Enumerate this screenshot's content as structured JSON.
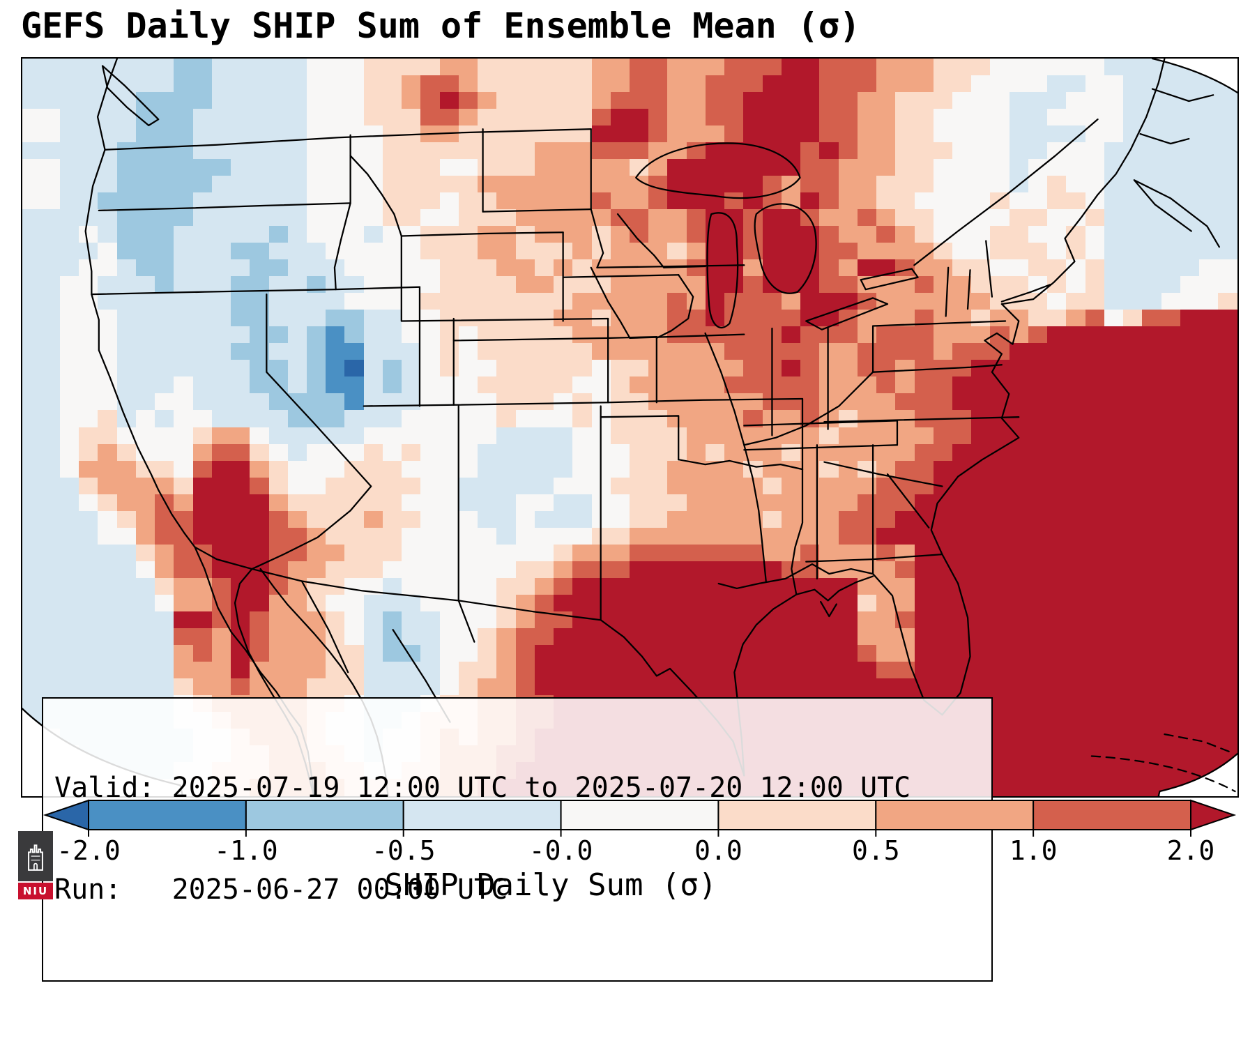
{
  "title": "GEFS Daily SHIP Sum of Ensemble Mean (σ)",
  "info_box": {
    "valid_line": "Valid: 2025-07-19 12:00 UTC to 2025-07-20 12:00 UTC",
    "run_line": "Run:   2025-06-27 00:00 UTC"
  },
  "colorbar": {
    "label": "SHIP Daily Sum (σ)",
    "ticks": [
      "-2.0",
      "-1.0",
      "-0.5",
      "-0.0",
      "0.0",
      "0.5",
      "1.0",
      "2.0"
    ],
    "under_color": "#2a66a8",
    "segment_colors": [
      "#4a90c4",
      "#9dc8e0",
      "#d5e6f1",
      "#f8f7f6",
      "#fbdcc9",
      "#f1a683",
      "#d4604d"
    ],
    "over_color": "#b2182b",
    "outline_color": "#000000"
  },
  "logo": {
    "text": "NIU",
    "emblem_color": "#3a3a3c",
    "band_color": "#c8102e"
  },
  "chart_data": {
    "type": "heatmap",
    "title": "GEFS Daily SHIP Sum of Ensemble Mean (σ)",
    "value_label": "SHIP Daily Sum (σ)",
    "valid": "2025-07-19 12:00 UTC to 2025-07-20 12:00 UTC",
    "run": "2025-06-27 00:00 UTC",
    "bin_edges": [
      -2.0,
      -1.0,
      -0.5,
      -0.0,
      0.0,
      0.5,
      1.0,
      2.0
    ],
    "palette": {
      "0": "#2a66a8",
      "1": "#4a90c4",
      "2": "#9dc8e0",
      "3": "#d5e6f1",
      "4": "#f8f7f6",
      "5": "#fbdcc9",
      "6": "#f1a683",
      "7": "#d4604d",
      "8": "#b2182b"
    },
    "palette_bins": {
      "0": "< -2.0",
      "1": "-2.0 to -1.0",
      "2": "-1.0 to -0.5",
      "3": "-0.5 to -0.0",
      "4": "-0.0 to 0.0",
      "5": "0.0 to 0.5",
      "6": "0.5 to 1.0",
      "7": "1.0 to 2.0",
      "8": "> 2.0"
    },
    "grid_cols": 64,
    "grid_rows": 44,
    "grid": [
      [
        "33333333",
        "22",
        "33333",
        "444",
        "5555",
        "66",
        "555555",
        "66",
        "77",
        "666",
        "777",
        "88",
        "777",
        "666",
        "555",
        "444444",
        "3333333"
      ],
      [
        "33333333",
        "22",
        "33333",
        "444",
        "55",
        "6",
        "77",
        "6",
        "555555",
        "66",
        "77",
        "66",
        "777",
        "888",
        "777",
        "666",
        "55",
        "4444",
        "33",
        "44",
        "333333"
      ],
      [
        "333333",
        "2222",
        "33333",
        "444",
        "55",
        "67876",
        "55555",
        "6",
        "777",
        "66",
        "77",
        "8888",
        "77",
        "66",
        "555",
        "444",
        "333",
        "444",
        "333333"
      ],
      [
        "44",
        "3333",
        "222",
        "333333",
        "444",
        "555",
        "77",
        "6",
        "555555",
        "7887",
        "66",
        "77",
        "8888",
        "77",
        "66",
        "55",
        "4444",
        "33",
        "4444",
        "333333"
      ],
      [
        "44",
        "3333",
        "222",
        "333333",
        "4444",
        "55",
        "66",
        "5555555",
        "8887",
        "666",
        "7",
        "8888",
        "77",
        "66",
        "55",
        "4444",
        "3333",
        "44",
        "333333"
      ],
      [
        "33333",
        "2222",
        "333333",
        "4444",
        "5555",
        "5555",
        "666",
        "777667",
        "88888",
        "787",
        "66",
        "555",
        "444",
        "33",
        "444",
        "3333333"
      ],
      [
        "44",
        "333",
        "222222",
        "3333",
        "4444",
        "555",
        "44",
        "555",
        "666",
        "66",
        "5",
        "6",
        "8888888",
        "77",
        "666",
        "55",
        "4444",
        "3",
        "4444",
        "3333333"
      ],
      [
        "44",
        "333",
        "22222",
        "33333",
        "4444",
        "55555",
        "666666666",
        "7",
        "88888",
        "7",
        "6",
        "77",
        "66",
        "555",
        "444",
        "434544",
        "3333333"
      ],
      [
        "44",
        "33",
        "22222",
        "333333",
        "4444",
        "5554",
        "55",
        "66666",
        "7",
        "66",
        "7",
        "888",
        "787687",
        "66",
        "55",
        "4444",
        "544554",
        "3333333"
      ],
      [
        "33333",
        "2222",
        "333333",
        "4444",
        "55",
        "44",
        "555",
        "6666",
        "677667",
        "88",
        "7",
        "88",
        "7",
        "6676",
        "55",
        "4444",
        "55445",
        "3333333"
      ],
      [
        "33",
        "343",
        "2223",
        "333323",
        "4443",
        "4455",
        "5665",
        "666",
        "567667",
        "88",
        "7",
        "888",
        "7667",
        "65",
        "4445",
        "54454",
        "3333333"
      ],
      [
        "33",
        "334",
        "2223",
        "332233",
        "3444",
        "4455",
        "5665",
        "556",
        "566656",
        "88",
        "7",
        "888",
        "7766",
        "66",
        "5445",
        "55454",
        "3333333"
      ],
      [
        "33",
        "344",
        "3223",
        "333223",
        "3344",
        "4445",
        "5566",
        "565",
        "666667",
        "88",
        "6",
        "888",
        "7688",
        "76",
        "6554",
        "45545",
        "3333344"
      ],
      [
        "33",
        "443",
        "3323",
        "332233",
        "2334",
        "4445",
        "5556",
        "655",
        "566666",
        "88",
        "7",
        "888",
        "7766",
        "67",
        "6655",
        "54545",
        "3333444"
      ],
      [
        "33",
        "443",
        "3333",
        "332233",
        "3344",
        "4455",
        "5555",
        "556",
        "666676",
        "87",
        "7",
        "768",
        "8876",
        "66",
        "6665",
        "55455",
        "3334445"
      ],
      [
        "33",
        "444",
        "3333",
        "332233",
        "3223",
        "3445",
        "5555",
        "566",
        "566677",
        "87",
        "7",
        "778",
        "8766",
        "67",
        "6656",
        "65567",
        "4577888"
      ],
      [
        "33",
        "444",
        "3333",
        "333223",
        "2123",
        "3445",
        "4555",
        "556",
        "666677",
        "77",
        "7",
        "787",
        "7767",
        "77",
        "6667",
        "67888",
        "8888888"
      ],
      [
        "33",
        "444",
        "3333",
        "332233",
        "2113",
        "3345",
        "4555",
        "555",
        "666666",
        "67",
        "7",
        "777",
        "6677",
        "77",
        "6777",
        "88888",
        "8888888"
      ],
      [
        "33",
        "444",
        "3333",
        "333223",
        "2103",
        "2345",
        "4455",
        "555",
        "455666",
        "66",
        "7",
        "787",
        "6677",
        "67",
        "7788",
        "88888",
        "8888888"
      ],
      [
        "33",
        "444",
        "3334",
        "333223",
        "2113",
        "2344",
        "4555",
        "554",
        "456666",
        "67",
        "7",
        "777",
        "6667",
        "67",
        "7888",
        "88888",
        "8888888"
      ],
      [
        "33",
        "444",
        "3344",
        "333322",
        "2213",
        "3344",
        "4455",
        "545",
        "455666",
        "66",
        "6",
        "777",
        "6666",
        "77",
        "7888",
        "88888",
        "8888888"
      ],
      [
        "33",
        "445",
        "3434",
        "433332",
        "2233",
        "3444",
        "4454",
        "445",
        "455566",
        "66",
        "7",
        "667",
        "6566",
        "67",
        "7788",
        "88888",
        "8888888"
      ],
      [
        "33",
        "455",
        "4444",
        "566433",
        "3334",
        "4444",
        "4433",
        "334",
        "455556",
        "66",
        "6",
        "666",
        "5666",
        "66",
        "7788",
        "88888",
        "8888888"
      ],
      [
        "33",
        "456",
        "5444",
        "677543",
        "4445",
        "4544",
        "4333",
        "334",
        "445556",
        "56",
        "6",
        "656",
        "6666",
        "67",
        "7888",
        "88888",
        "8888888"
      ],
      [
        "33",
        "466",
        "6554",
        "788654",
        "4455",
        "5444",
        "4333",
        "334",
        "445566",
        "66",
        "5",
        "666",
        "5656",
        "77",
        "8888",
        "88888",
        "8888888"
      ],
      [
        "33",
        "356",
        "6665",
        "888754",
        "4555",
        "5544",
        "3333",
        "344",
        "455566",
        "66",
        "6",
        "566",
        "6667",
        "77",
        "8888",
        "88888",
        "8888888"
      ],
      [
        "33",
        "345",
        "6676",
        "888865",
        "5555",
        "5444",
        "3334",
        "433",
        "445556",
        "66",
        "6",
        "666",
        "6677",
        "78",
        "8888",
        "88888",
        "8888888"
      ],
      [
        "33",
        "334",
        "5677",
        "888876",
        "5556",
        "5544",
        "4334",
        "333",
        "445566",
        "66",
        "6",
        "566",
        "6777",
        "88",
        "8888",
        "88888",
        "8888888"
      ],
      [
        "33",
        "334",
        "4677",
        "888877",
        "6555",
        "5444",
        "4434",
        "444",
        "556666",
        "66",
        "6",
        "666",
        "6778",
        "88",
        "8888",
        "88888",
        "8888888"
      ],
      [
        "33",
        "333",
        "3567",
        "788877",
        "6655",
        "5444",
        "4444",
        "456",
        "667777",
        "77",
        "7",
        "667",
        "6667",
        "68",
        "8888",
        "88888",
        "8888888"
      ],
      [
        "33",
        "333",
        "3467",
        "788876",
        "6555",
        "4444",
        "4445",
        "567",
        "778888",
        "88",
        "8",
        "877",
        "6666",
        "78",
        "8888",
        "88888",
        "8888888"
      ],
      [
        "33",
        "333",
        "3356",
        "678876",
        "5544",
        "3444",
        "4455",
        "678",
        "888888",
        "88",
        "8",
        "888",
        "8866",
        "68",
        "8888",
        "88888",
        "8888888"
      ],
      [
        "33",
        "333",
        "3346",
        "678866",
        "5443",
        "3344",
        "4456",
        "788",
        "888888",
        "88",
        "8",
        "888",
        "8856",
        "68",
        "8888",
        "88888",
        "8888888"
      ],
      [
        "33",
        "333",
        "3338",
        "878766",
        "6543",
        "2334",
        "4456",
        "778",
        "888888",
        "88",
        "8",
        "888",
        "8866",
        "78",
        "8888",
        "88888",
        "8888888"
      ],
      [
        "33",
        "333",
        "3337",
        "768766",
        "6543",
        "2334",
        "4567",
        "788",
        "888888",
        "88",
        "8",
        "888",
        "8866",
        "68",
        "8888",
        "88888",
        "8888888"
      ],
      [
        "33",
        "333",
        "3336",
        "768766",
        "6553",
        "2234",
        "4567",
        "888",
        "888888",
        "88",
        "8",
        "888",
        "8876",
        "68",
        "8888",
        "88888",
        "8888888"
      ],
      [
        "33",
        "333",
        "3336",
        "668666",
        "6553",
        "3334",
        "5567",
        "888",
        "888888",
        "88",
        "8",
        "888",
        "8887",
        "78",
        "8888",
        "88888",
        "8888888"
      ],
      [
        "33",
        "333",
        "3335",
        "667666",
        "5553",
        "3334",
        "5667",
        "888",
        "888888",
        "88",
        "8",
        "888",
        "8888",
        "88",
        "8888",
        "88888",
        "8888888"
      ],
      [
        "33",
        "333",
        "3334",
        "566666",
        "5543",
        "3345",
        "5667",
        "788",
        "888888",
        "88",
        "8",
        "888",
        "8888",
        "88",
        "8888",
        "88888",
        "8888888"
      ],
      [
        "33",
        "333",
        "3334",
        "456666",
        "5443",
        "3455",
        "5667",
        "788",
        "888888",
        "88",
        "8",
        "888",
        "8888",
        "88",
        "8888",
        "88888",
        "8888888"
      ],
      [
        "34",
        "333",
        "3333",
        "445666",
        "5443",
        "4456",
        "5667",
        "888",
        "888888",
        "88",
        "8",
        "888",
        "8888",
        "88",
        "8888",
        "88888",
        "8888888"
      ],
      [
        "44",
        "433",
        "3333",
        "445566",
        "5543",
        "4456",
        "6677",
        "888",
        "888888",
        "88",
        "8",
        "888",
        "8888",
        "88",
        "8888",
        "88888",
        "8888888"
      ],
      [
        "44",
        "443",
        "3334",
        "455566",
        "6554",
        "4556",
        "6678",
        "888",
        "888888",
        "88",
        "8",
        "888",
        "8888",
        "88",
        "8888",
        "88888",
        "8888888"
      ],
      [
        "44",
        "444",
        "4444",
        "455666",
        "6655",
        "5566",
        "6788",
        "888",
        "888888",
        "88",
        "8",
        "888",
        "8888",
        "88",
        "8888",
        "88888",
        "8888888"
      ]
    ]
  }
}
